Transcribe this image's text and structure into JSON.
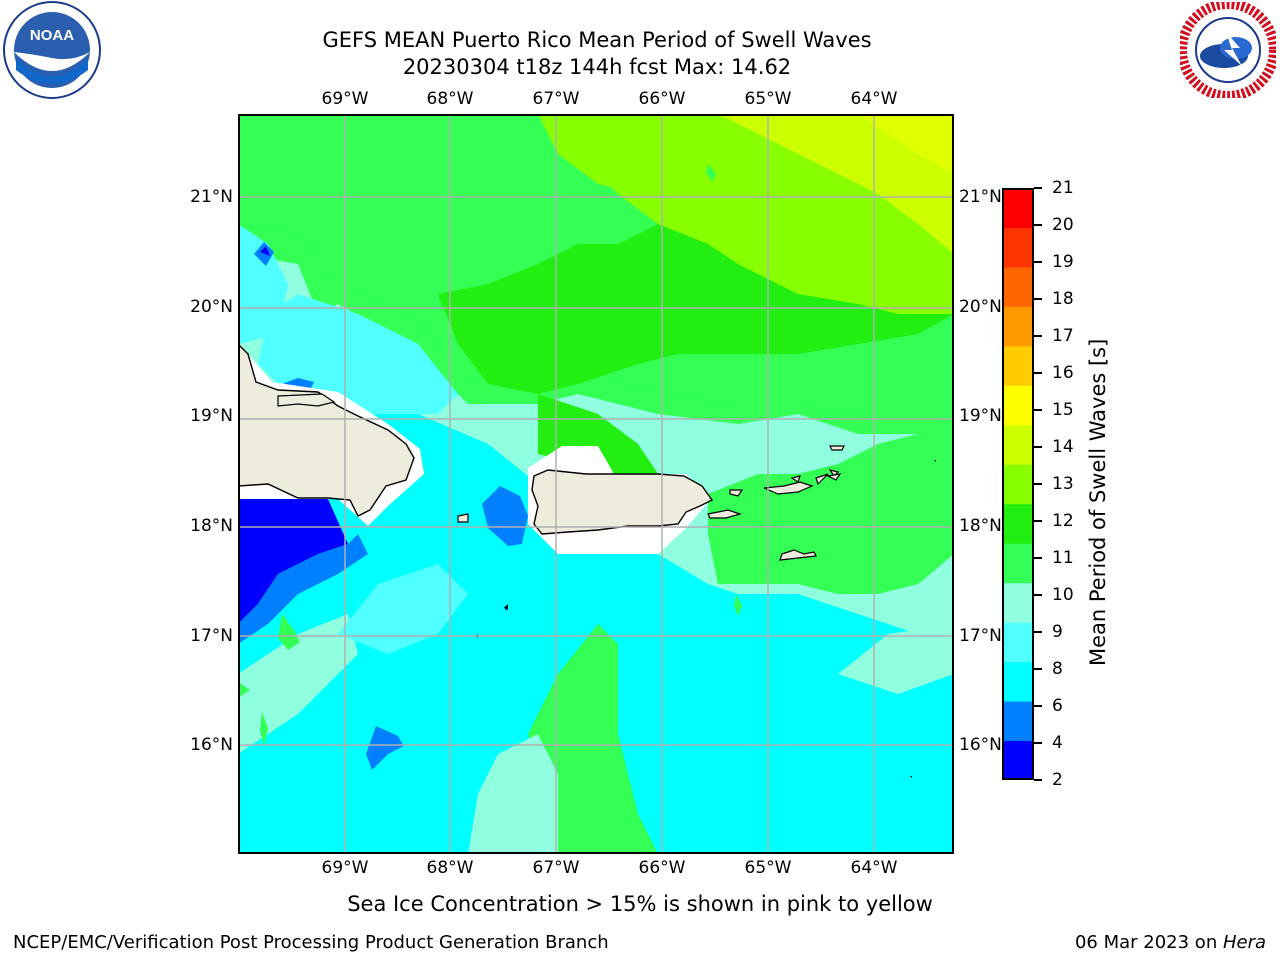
{
  "title": {
    "line1": "GEFS MEAN Puerto Rico Mean Period of Swell Waves",
    "line2": "20230304 t18z 144h fcst   Max: 14.62"
  },
  "logos": {
    "left": {
      "text": "NOAA",
      "ring_text": "NATIONAL OCEANIC AND ATMOSPHERIC ADMINISTRATION · U.S. DEPARTMENT OF COMMERCE"
    },
    "right": {
      "ring_text": "NATIONAL WEATHER SERVICE"
    }
  },
  "lon_labels": [
    "69°W",
    "68°W",
    "67°W",
    "66°W",
    "65°W",
    "64°W"
  ],
  "lat_labels": [
    "21°N",
    "20°N",
    "19°N",
    "18°N",
    "17°N",
    "16°N"
  ],
  "colorbar": {
    "label": "Mean Period of Swell Waves [s]",
    "ticks": [
      "21",
      "20",
      "19",
      "18",
      "17",
      "16",
      "15",
      "14",
      "13",
      "12",
      "11",
      "10",
      "9",
      "8",
      "6",
      "4",
      "2"
    ],
    "colors": [
      "#0000ff",
      "#0080ff",
      "#00ffff",
      "#50ffff",
      "#90ffe0",
      "#33ff55",
      "#22ee11",
      "#88ff00",
      "#ccff00",
      "#ffff00",
      "#ffcc00",
      "#ff9900",
      "#ff6600",
      "#ff3300",
      "#ff0000"
    ]
  },
  "note": "Sea Ice Concentration > 15% is shown in pink to yellow",
  "footer": {
    "left": "NCEP/EMC/Verification Post Processing Product Generation Branch",
    "date": "06 Mar 2023 on ",
    "host": "Hera"
  },
  "map": {
    "colors": {
      "deep_blue": "#0000ff",
      "blue": "#0080ff",
      "cyan": "#00ffff",
      "light_cyan": "#50ffff",
      "aqua": "#90ffe0",
      "green": "#33ff55",
      "bright_green": "#22ee11",
      "lime": "#88ff00",
      "yellow_green": "#ccff00",
      "yellow": "#ffff00",
      "land": "#eeecdc",
      "grid": "#b0b0b0"
    }
  }
}
